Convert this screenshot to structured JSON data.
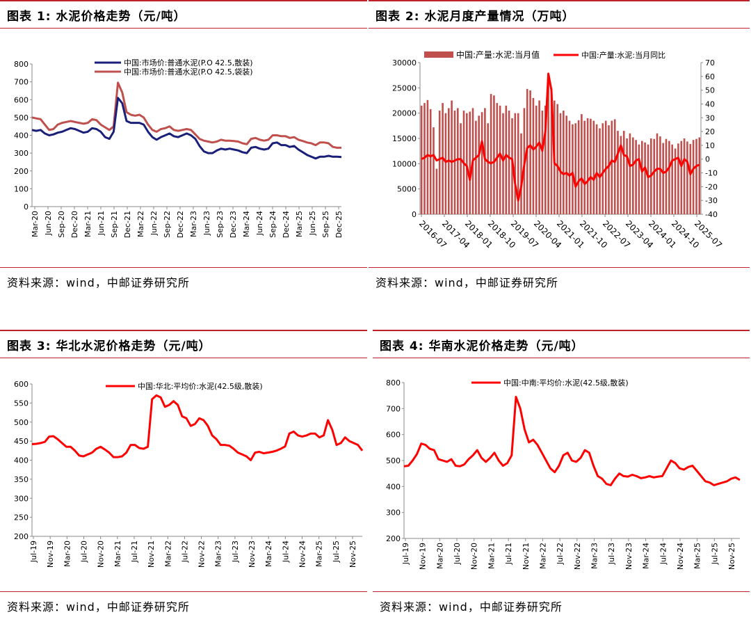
{
  "colors": {
    "accent": "#c0202a",
    "navy": "#1a1f7a",
    "brick": "#c0504d",
    "red": "#ff0000"
  },
  "panels": [
    {
      "title": "图表 1:  水泥价格走势（元/吨）",
      "source": "资料来源：wind，中邮证券研究所"
    },
    {
      "title": "图表 2:  水泥月度产量情况（万吨）",
      "source": "资料来源：wind，中邮证券研究所"
    },
    {
      "title": "图表 3:  华北水泥价格走势（元/吨）",
      "source": "资料来源：wind，中邮证券研究所"
    },
    {
      "title": "图表 4:  华南水泥价格走势（元/吨）",
      "source": "资料来源：wind，中邮证券研究所"
    }
  ],
  "chart_data": [
    {
      "type": "line",
      "yticks": [
        0,
        100,
        200,
        300,
        400,
        500,
        600,
        700,
        800
      ],
      "ylim": [
        0,
        800
      ],
      "xticks": [
        "Mar-20",
        "Jun-20",
        "Sep-20",
        "Dec-20",
        "Mar-21",
        "Jun-21",
        "Sep-21",
        "Dec-21",
        "Mar-22",
        "Jun-22",
        "Sep-22",
        "Dec-22",
        "Mar-23",
        "Jun-23",
        "Sep-23",
        "Dec-23",
        "Mar-24",
        "Jun-24",
        "Sep-24",
        "Dec-24",
        "Mar-25",
        "Jun-25",
        "Sep-25",
        "Dec-25"
      ],
      "series": [
        {
          "name": "中国:市场价:普通水泥(P.O 42.5,散装)",
          "color": "#1a1f7a",
          "values": [
            430,
            425,
            430,
            410,
            400,
            405,
            415,
            420,
            430,
            440,
            435,
            425,
            415,
            420,
            440,
            435,
            420,
            390,
            380,
            420,
            610,
            580,
            480,
            470,
            470,
            470,
            460,
            420,
            390,
            375,
            390,
            400,
            410,
            395,
            390,
            400,
            410,
            400,
            380,
            340,
            310,
            300,
            300,
            315,
            325,
            320,
            325,
            320,
            315,
            305,
            300,
            330,
            335,
            325,
            320,
            325,
            355,
            360,
            345,
            345,
            335,
            340,
            320,
            305,
            290,
            280,
            270,
            280,
            280,
            285,
            280,
            280,
            278
          ]
        },
        {
          "name": "中国:市场价:普通水泥(P.O 42.5,袋装)",
          "color": "#c0504d",
          "values": [
            500,
            495,
            490,
            460,
            430,
            435,
            460,
            470,
            475,
            480,
            475,
            470,
            465,
            470,
            490,
            485,
            460,
            445,
            430,
            450,
            695,
            640,
            530,
            515,
            510,
            515,
            500,
            460,
            430,
            420,
            435,
            440,
            450,
            430,
            425,
            430,
            435,
            430,
            405,
            380,
            370,
            365,
            360,
            365,
            375,
            370,
            370,
            368,
            365,
            355,
            350,
            380,
            385,
            375,
            370,
            375,
            400,
            400,
            395,
            395,
            385,
            390,
            375,
            368,
            360,
            355,
            345,
            360,
            360,
            355,
            335,
            330,
            330
          ]
        }
      ]
    },
    {
      "type": "bar+line",
      "left_yticks": [
        0,
        5000,
        10000,
        15000,
        20000,
        25000,
        30000
      ],
      "left_ylim": [
        0,
        30000
      ],
      "right_yticks": [
        -40,
        -30,
        -20,
        -10,
        0,
        10,
        20,
        30,
        40,
        50,
        60,
        70
      ],
      "right_ylim": [
        -40,
        70
      ],
      "xticks": [
        "2016-07",
        "2017-04",
        "2018-01",
        "2018-10",
        "2019-07",
        "2020-04",
        "2021-01",
        "2021-10",
        "2022-07",
        "2023-04",
        "2024-01",
        "2024-10",
        "2025-07"
      ],
      "series": [
        {
          "name": "中国:产量:水泥:当月值",
          "color": "#c0504d",
          "kind": "bar",
          "values": [
            21500,
            22000,
            22600,
            20800,
            17200,
            9000,
            20500,
            22000,
            20000,
            21000,
            22500,
            20500,
            21000,
            18000,
            20500,
            20000,
            20300,
            21000,
            18500,
            19500,
            20200,
            21000,
            18000,
            23800,
            23500,
            22000,
            21500,
            20000,
            21500,
            20500,
            19000,
            20000,
            20000,
            16000,
            21000,
            24800,
            24500,
            23000,
            21500,
            22500,
            20500,
            21500,
            26500,
            25000,
            22500,
            21800,
            20000,
            20500,
            19500,
            18500,
            17800,
            18000,
            18600,
            19800,
            18500,
            19000,
            18900,
            18500,
            17800,
            17000,
            18000,
            18500,
            17600,
            18500,
            18800,
            16500,
            15500,
            16500,
            15000,
            16000,
            15200,
            14700,
            13800,
            14500,
            14200,
            13800,
            15000,
            14900,
            16000,
            15400,
            14100,
            14900,
            14500,
            13800,
            13000,
            14000,
            14500,
            15000,
            14400,
            13900,
            14700,
            14900,
            15200
          ]
        },
        {
          "name": "中国:产量:水泥:当月同比",
          "color": "#ff0000",
          "kind": "line",
          "values": [
            0,
            1,
            3,
            2,
            3,
            -1,
            0,
            1,
            -2,
            -1,
            -2,
            -1,
            0,
            0,
            -3,
            -5,
            -15,
            -1,
            1,
            3,
            13,
            0,
            -2,
            -3,
            -2,
            1,
            4,
            -1,
            3,
            1,
            0,
            -18,
            -30,
            -20,
            -4,
            8,
            10,
            7,
            9,
            12,
            6,
            20,
            62,
            50,
            -3,
            -5,
            -9,
            -11,
            -10,
            -12,
            -10,
            -20,
            -16,
            -14,
            -18,
            -16,
            -13,
            -15,
            -10,
            -13,
            -10,
            -7,
            -5,
            -1,
            -2,
            4,
            10,
            3,
            2,
            -5,
            -4,
            -1,
            0,
            -9,
            -6,
            -13,
            -12,
            -9,
            -7,
            -7,
            -10,
            -9,
            -6,
            -1,
            0,
            1,
            -5,
            0,
            -2,
            -11,
            -7,
            -5,
            -4
          ]
        }
      ]
    },
    {
      "type": "line",
      "yticks": [
        200,
        250,
        300,
        350,
        400,
        450,
        500,
        550,
        600
      ],
      "ylim": [
        200,
        600
      ],
      "xticks": [
        "Jul-19",
        "Nov-19",
        "Mar-20",
        "Jul-20",
        "Nov-20",
        "Mar-21",
        "Jul-21",
        "Nov-21",
        "Mar-22",
        "Jul-22",
        "Nov-22",
        "Mar-23",
        "Jul-23",
        "Nov-23",
        "Mar-24",
        "Jul-24",
        "Nov-24",
        "Mar-25",
        "Jul-25",
        "Nov-25"
      ],
      "series": [
        {
          "name": "中国:华北:平均价:水泥(42.5级,散装)",
          "color": "#ff0000",
          "values": [
            442,
            443,
            445,
            448,
            462,
            463,
            455,
            445,
            435,
            435,
            425,
            412,
            410,
            415,
            420,
            430,
            435,
            428,
            420,
            408,
            408,
            410,
            420,
            440,
            440,
            432,
            430,
            435,
            560,
            570,
            565,
            540,
            545,
            555,
            545,
            515,
            510,
            490,
            495,
            510,
            505,
            490,
            465,
            455,
            440,
            440,
            438,
            430,
            420,
            415,
            410,
            400,
            420,
            422,
            418,
            420,
            422,
            425,
            430,
            436,
            470,
            475,
            465,
            462,
            465,
            470,
            470,
            460,
            465,
            505,
            480,
            440,
            445,
            460,
            450,
            445,
            440,
            425
          ]
        }
      ]
    },
    {
      "type": "line",
      "yticks": [
        200,
        300,
        400,
        500,
        600,
        700,
        800
      ],
      "ylim": [
        200,
        800
      ],
      "xticks": [
        "Jul-19",
        "Nov-19",
        "Mar-20",
        "Jul-20",
        "Nov-20",
        "Mar-21",
        "Jul-21",
        "Nov-21",
        "Mar-22",
        "Jul-22",
        "Nov-22",
        "Mar-23",
        "Jul-23",
        "Nov-23",
        "Mar-24",
        "Jul-24",
        "Nov-24",
        "Mar-25",
        "Jul-25",
        "Nov-25"
      ],
      "series": [
        {
          "name": "中国:中南:平均价:水泥(42.5级,散装)",
          "color": "#ff0000",
          "values": [
            478,
            480,
            500,
            525,
            565,
            560,
            545,
            540,
            505,
            500,
            495,
            505,
            480,
            478,
            485,
            505,
            520,
            540,
            510,
            495,
            510,
            530,
            500,
            480,
            490,
            520,
            745,
            700,
            620,
            570,
            580,
            560,
            530,
            500,
            470,
            455,
            480,
            520,
            530,
            500,
            495,
            510,
            540,
            530,
            480,
            440,
            430,
            410,
            405,
            430,
            450,
            440,
            438,
            445,
            440,
            432,
            435,
            440,
            435,
            438,
            440,
            470,
            500,
            490,
            470,
            465,
            475,
            480,
            460,
            440,
            420,
            415,
            405,
            410,
            415,
            420,
            430,
            435,
            425
          ]
        }
      ]
    }
  ]
}
